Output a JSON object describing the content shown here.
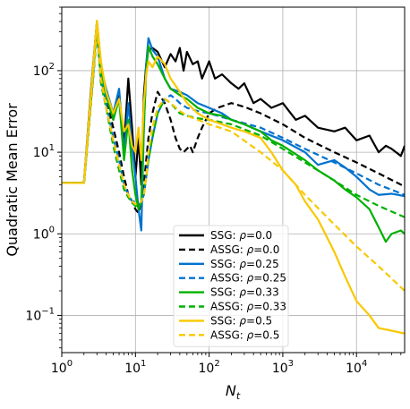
{
  "chart_data": {
    "type": "line",
    "xlabel": "N_t",
    "ylabel": "Quadratic Mean Error",
    "x_scale": "log",
    "y_scale": "log",
    "xlim": [
      1,
      45000
    ],
    "ylim": [
      0.035,
      600
    ],
    "grid": true,
    "legend_position": "lower-center",
    "x_ticks": [
      {
        "value": 1,
        "base": "10",
        "exp": "0"
      },
      {
        "value": 10,
        "base": "10",
        "exp": "1"
      },
      {
        "value": 100,
        "base": "10",
        "exp": "2"
      },
      {
        "value": 1000,
        "base": "10",
        "exp": "3"
      },
      {
        "value": 10000,
        "base": "10",
        "exp": "4"
      }
    ],
    "y_ticks": [
      {
        "value": 0.1,
        "base": "10",
        "exp": "−1"
      },
      {
        "value": 1,
        "base": "10",
        "exp": "0"
      },
      {
        "value": 10,
        "base": "10",
        "exp": "1"
      },
      {
        "value": 100,
        "base": "10",
        "exp": "2"
      }
    ],
    "series": [
      {
        "name": "SSG: ρ=0.0",
        "color": "#000000",
        "dash": false,
        "x": [
          1,
          2,
          2.5,
          3,
          3.4,
          4,
          5,
          6,
          7,
          8,
          9,
          10,
          11,
          12,
          13,
          14,
          15,
          17,
          20,
          25,
          30,
          35,
          40,
          45,
          50,
          60,
          70,
          80,
          100,
          120,
          150,
          200,
          250,
          300,
          400,
          500,
          700,
          1000,
          1500,
          2000,
          3000,
          5000,
          7000,
          10000,
          15000,
          20000,
          25000,
          30000,
          40000,
          45000
        ],
        "y": [
          4.2,
          4.2,
          60,
          400,
          120,
          50,
          25,
          50,
          12,
          80,
          20,
          5,
          15,
          4,
          50,
          120,
          180,
          190,
          170,
          110,
          160,
          130,
          190,
          100,
          170,
          120,
          130,
          80,
          130,
          80,
          90,
          70,
          60,
          70,
          40,
          45,
          35,
          40,
          25,
          28,
          20,
          18,
          20,
          14,
          16,
          10,
          12,
          11,
          9,
          12
        ]
      },
      {
        "name": "ASSG: ρ=0.0",
        "color": "#000000",
        "dash": true,
        "x": [
          1,
          2,
          2.5,
          3,
          3.4,
          4,
          5,
          6,
          7,
          8,
          9,
          10,
          11,
          12,
          13,
          14,
          15,
          17,
          20,
          25,
          30,
          35,
          40,
          45,
          50,
          55,
          60,
          70,
          80,
          100,
          130,
          200,
          300,
          500,
          1000,
          2000,
          5000,
          10000,
          20000,
          45000
        ],
        "y": [
          4.2,
          4.2,
          40,
          300,
          90,
          45,
          20,
          10,
          5,
          3,
          2.5,
          2,
          1.8,
          2.5,
          4,
          8,
          15,
          30,
          55,
          40,
          25,
          15,
          11,
          10,
          11,
          12,
          10,
          15,
          20,
          30,
          35,
          40,
          36,
          30,
          22,
          15,
          10,
          7.5,
          5.5,
          3.8
        ]
      },
      {
        "name": "SSG: ρ=0.25",
        "color": "#0072CE",
        "dash": false,
        "x": [
          1,
          2,
          2.5,
          3,
          3.4,
          4,
          5,
          6,
          7,
          8,
          9,
          10,
          11,
          12,
          13,
          14,
          15,
          17,
          20,
          25,
          30,
          40,
          50,
          70,
          100,
          150,
          200,
          300,
          500,
          1000,
          2000,
          3000,
          5000,
          7000,
          10000,
          15000,
          20000,
          30000,
          45000
        ],
        "y": [
          4.2,
          4.2,
          50,
          380,
          110,
          60,
          30,
          60,
          10,
          40,
          12,
          5,
          2,
          1.1,
          20,
          120,
          250,
          180,
          150,
          80,
          60,
          55,
          50,
          40,
          35,
          30,
          25,
          22,
          18,
          14,
          10,
          7,
          8,
          6.5,
          5,
          3.5,
          3,
          3.1,
          2.9
        ]
      },
      {
        "name": "ASSG: ρ=0.25",
        "color": "#0072CE",
        "dash": true,
        "x": [
          1,
          2,
          2.5,
          3,
          3.4,
          4,
          5,
          6,
          7,
          8,
          9,
          10,
          11,
          12,
          13,
          14,
          15,
          17,
          20,
          25,
          30,
          35,
          40,
          50,
          70,
          100,
          200,
          500,
          1000,
          2000,
          5000,
          10000,
          20000,
          45000
        ],
        "y": [
          4.2,
          4.2,
          40,
          300,
          80,
          40,
          15,
          8,
          4,
          3,
          2.5,
          2.5,
          2.2,
          2.5,
          3,
          5,
          8,
          15,
          30,
          45,
          50,
          45,
          40,
          35,
          32,
          30,
          25,
          20,
          15,
          11,
          7.5,
          5.5,
          4,
          3
        ]
      },
      {
        "name": "SSG: ρ=0.33",
        "color": "#00B000",
        "dash": false,
        "x": [
          1,
          2,
          2.5,
          3,
          3.4,
          4,
          5,
          6,
          7,
          8,
          9,
          10,
          11,
          12,
          13,
          14,
          15,
          17,
          20,
          25,
          30,
          40,
          50,
          70,
          100,
          150,
          200,
          300,
          500,
          700,
          1000,
          2000,
          3000,
          5000,
          7000,
          10000,
          15000,
          20000,
          25000,
          30000,
          40000,
          45000
        ],
        "y": [
          4.2,
          4.2,
          45,
          360,
          100,
          50,
          25,
          45,
          8,
          25,
          6,
          3,
          2,
          2.5,
          20,
          100,
          200,
          150,
          120,
          80,
          60,
          50,
          45,
          35,
          30,
          28,
          25,
          22,
          18,
          14,
          12,
          8,
          6,
          4.5,
          3.5,
          2.8,
          2,
          1.2,
          0.8,
          1.0,
          1.1,
          1.0
        ]
      },
      {
        "name": "ASSG: ρ=0.33",
        "color": "#00B000",
        "dash": true,
        "x": [
          1,
          2,
          2.5,
          3,
          3.4,
          4,
          5,
          6,
          7,
          8,
          9,
          10,
          11,
          12,
          13,
          14,
          15,
          17,
          20,
          25,
          30,
          40,
          50,
          70,
          100,
          200,
          500,
          1000,
          2000,
          5000,
          10000,
          20000,
          45000
        ],
        "y": [
          4.2,
          4.2,
          40,
          320,
          70,
          35,
          12,
          6,
          3.5,
          2.8,
          2.4,
          2.2,
          2.2,
          2.5,
          3,
          5,
          8,
          15,
          30,
          45,
          40,
          30,
          28,
          26,
          25,
          22,
          16,
          11,
          7.5,
          4.5,
          3,
          2.2,
          1.6
        ]
      },
      {
        "name": "SSG: ρ=0.5",
        "color": "#F9C800",
        "dash": false,
        "x": [
          1,
          2,
          2.5,
          3,
          3.4,
          4,
          5,
          6,
          7,
          8,
          9,
          10,
          11,
          12,
          13,
          14,
          15,
          17,
          20,
          25,
          30,
          40,
          50,
          70,
          100,
          150,
          200,
          300,
          500,
          700,
          1000,
          1500,
          2000,
          3000,
          4000,
          5000,
          7000,
          10000,
          15000,
          20000,
          30000,
          45000
        ],
        "y": [
          4.2,
          4.2,
          55,
          410,
          130,
          55,
          30,
          45,
          18,
          22,
          12,
          10,
          20,
          8,
          40,
          90,
          130,
          110,
          150,
          120,
          80,
          55,
          40,
          30,
          25,
          22,
          20,
          18,
          15,
          10,
          6,
          4,
          2.5,
          1.5,
          0.9,
          0.6,
          0.3,
          0.15,
          0.1,
          0.07,
          0.065,
          0.06
        ]
      },
      {
        "name": "ASSG: ρ=0.5",
        "color": "#F9C800",
        "dash": true,
        "x": [
          1,
          2,
          2.5,
          3,
          3.4,
          4,
          5,
          6,
          7,
          8,
          9,
          10,
          11,
          12,
          13,
          14,
          15,
          17,
          20,
          25,
          30,
          40,
          50,
          70,
          100,
          200,
          500,
          1000,
          2000,
          5000,
          10000,
          20000,
          45000
        ],
        "y": [
          4.2,
          4.2,
          40,
          330,
          80,
          35,
          14,
          7,
          4,
          3,
          2.5,
          2.3,
          2.3,
          2.5,
          3,
          5,
          10,
          20,
          35,
          45,
          40,
          32,
          28,
          25,
          22,
          18,
          10,
          6,
          3,
          1.3,
          0.7,
          0.4,
          0.2
        ]
      }
    ]
  }
}
